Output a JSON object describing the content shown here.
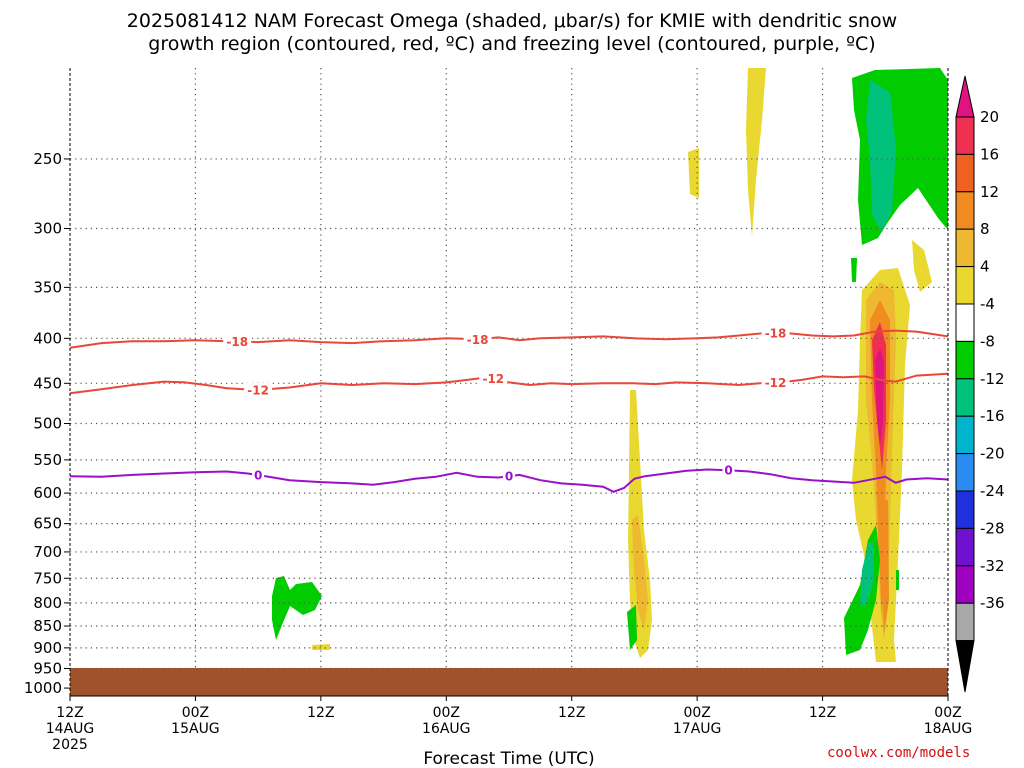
{
  "title_line1": "2025081412 NAM Forecast Omega (shaded, μbar/s) for KMIE with dendritic snow",
  "title_line2": "growth region (contoured, red, ºC) and freezing level (contoured, purple, ºC)",
  "credit": "coolwx.com/models",
  "chart_data": {
    "type": "time-height cross section",
    "xlabel": "Forecast Time (UTC)",
    "ylabel": "",
    "y_axis": {
      "scale": "log",
      "reversed": true,
      "ticks": [
        250,
        300,
        350,
        400,
        450,
        500,
        550,
        600,
        650,
        700,
        750,
        800,
        850,
        900,
        950,
        1000
      ]
    },
    "x_axis": {
      "range_hours": [
        0,
        84
      ],
      "ticks": [
        {
          "hour": 0,
          "lines": [
            "12Z",
            "14AUG",
            "2025"
          ]
        },
        {
          "hour": 12,
          "lines": [
            "00Z",
            "15AUG"
          ]
        },
        {
          "hour": 24,
          "lines": [
            "12Z"
          ]
        },
        {
          "hour": 36,
          "lines": [
            "00Z",
            "16AUG"
          ]
        },
        {
          "hour": 48,
          "lines": [
            "12Z"
          ]
        },
        {
          "hour": 60,
          "lines": [
            "00Z",
            "17AUG"
          ]
        },
        {
          "hour": 72,
          "lines": [
            "12Z"
          ]
        },
        {
          "hour": 84,
          "lines": [
            "00Z",
            "18AUG"
          ]
        }
      ]
    },
    "contours": [
      {
        "level": -18,
        "color": "#e8473a",
        "label": "-18",
        "points": [
          [
            0,
            410
          ],
          [
            3,
            405
          ],
          [
            6,
            403
          ],
          [
            9,
            403
          ],
          [
            12,
            402
          ],
          [
            15,
            403
          ],
          [
            18,
            404
          ],
          [
            21,
            402
          ],
          [
            24,
            404
          ],
          [
            27,
            405
          ],
          [
            30,
            403
          ],
          [
            33,
            402
          ],
          [
            36,
            400
          ],
          [
            39,
            401
          ],
          [
            41,
            399
          ],
          [
            43,
            402
          ],
          [
            45,
            400
          ],
          [
            48,
            399
          ],
          [
            51,
            398
          ],
          [
            54,
            400
          ],
          [
            57,
            401
          ],
          [
            60,
            400
          ],
          [
            62,
            399
          ],
          [
            64,
            397
          ],
          [
            67,
            394
          ],
          [
            69,
            395
          ],
          [
            71,
            397
          ],
          [
            73,
            398
          ],
          [
            75,
            397
          ],
          [
            77,
            393
          ],
          [
            79,
            392
          ],
          [
            81,
            393
          ],
          [
            84,
            398
          ]
        ],
        "label_hours": [
          16,
          39,
          67.5
        ]
      },
      {
        "level": -12,
        "color": "#e8473a",
        "label": "-12",
        "points": [
          [
            0,
            462
          ],
          [
            3,
            457
          ],
          [
            6,
            452
          ],
          [
            9,
            448
          ],
          [
            11,
            449
          ],
          [
            13,
            452
          ],
          [
            15,
            456
          ],
          [
            18,
            458
          ],
          [
            21,
            455
          ],
          [
            24,
            450
          ],
          [
            27,
            452
          ],
          [
            30,
            450
          ],
          [
            33,
            451
          ],
          [
            36,
            449
          ],
          [
            38,
            446
          ],
          [
            40,
            443
          ],
          [
            42,
            449
          ],
          [
            44,
            452
          ],
          [
            46,
            450
          ],
          [
            48,
            451
          ],
          [
            51,
            450
          ],
          [
            54,
            450
          ],
          [
            56,
            451
          ],
          [
            58,
            449
          ],
          [
            61,
            450
          ],
          [
            64,
            452
          ],
          [
            66,
            450
          ],
          [
            68,
            449
          ],
          [
            70,
            446
          ],
          [
            72,
            442
          ],
          [
            74,
            443
          ],
          [
            76,
            442
          ],
          [
            78,
            447
          ],
          [
            79,
            448
          ],
          [
            81,
            441
          ],
          [
            84,
            439
          ]
        ],
        "label_hours": [
          18,
          40.5,
          67.5
        ]
      },
      {
        "level": 0,
        "color": "#9a10c8",
        "label": "0",
        "points": [
          [
            0,
            574
          ],
          [
            3,
            575
          ],
          [
            6,
            572
          ],
          [
            9,
            570
          ],
          [
            12,
            568
          ],
          [
            15,
            567
          ],
          [
            17,
            570
          ],
          [
            19,
            575
          ],
          [
            21,
            580
          ],
          [
            24,
            583
          ],
          [
            27,
            585
          ],
          [
            29,
            587
          ],
          [
            31,
            583
          ],
          [
            33,
            578
          ],
          [
            35,
            575
          ],
          [
            37,
            569
          ],
          [
            39,
            575
          ],
          [
            41,
            576
          ],
          [
            43,
            572
          ],
          [
            45,
            580
          ],
          [
            47,
            585
          ],
          [
            49,
            587
          ],
          [
            51,
            590
          ],
          [
            52,
            598
          ],
          [
            53,
            592
          ],
          [
            54,
            578
          ],
          [
            55,
            574
          ],
          [
            57,
            570
          ],
          [
            59,
            566
          ],
          [
            61,
            564
          ],
          [
            63,
            565
          ],
          [
            65,
            567
          ],
          [
            67,
            571
          ],
          [
            69,
            577
          ],
          [
            71,
            580
          ],
          [
            73,
            582
          ],
          [
            75,
            584
          ],
          [
            77,
            578
          ],
          [
            78,
            575
          ],
          [
            79,
            584
          ],
          [
            80,
            579
          ],
          [
            82,
            577
          ],
          [
            84,
            579
          ]
        ],
        "label_hours": [
          18,
          42,
          63
        ]
      }
    ],
    "omega_colorbar": {
      "labels": [
        "20",
        "16",
        "12",
        "8",
        "4",
        "-4",
        "-8",
        "-12",
        "-16",
        "-20",
        "-24",
        "-28",
        "-32",
        "-36"
      ],
      "colors": [
        "#e01480",
        "#f03050",
        "#f06020",
        "#f08c20",
        "#eeb830",
        "#e8d830",
        "#ffffff",
        "#00cc00",
        "#00c27a",
        "#00b4cc",
        "#2a8cf0",
        "#2030dc",
        "#7010d0",
        "#a000c0",
        "#a8a8a8",
        "#000000"
      ],
      "unit": "μbar/s"
    },
    "ground_color": "#a0522d"
  }
}
